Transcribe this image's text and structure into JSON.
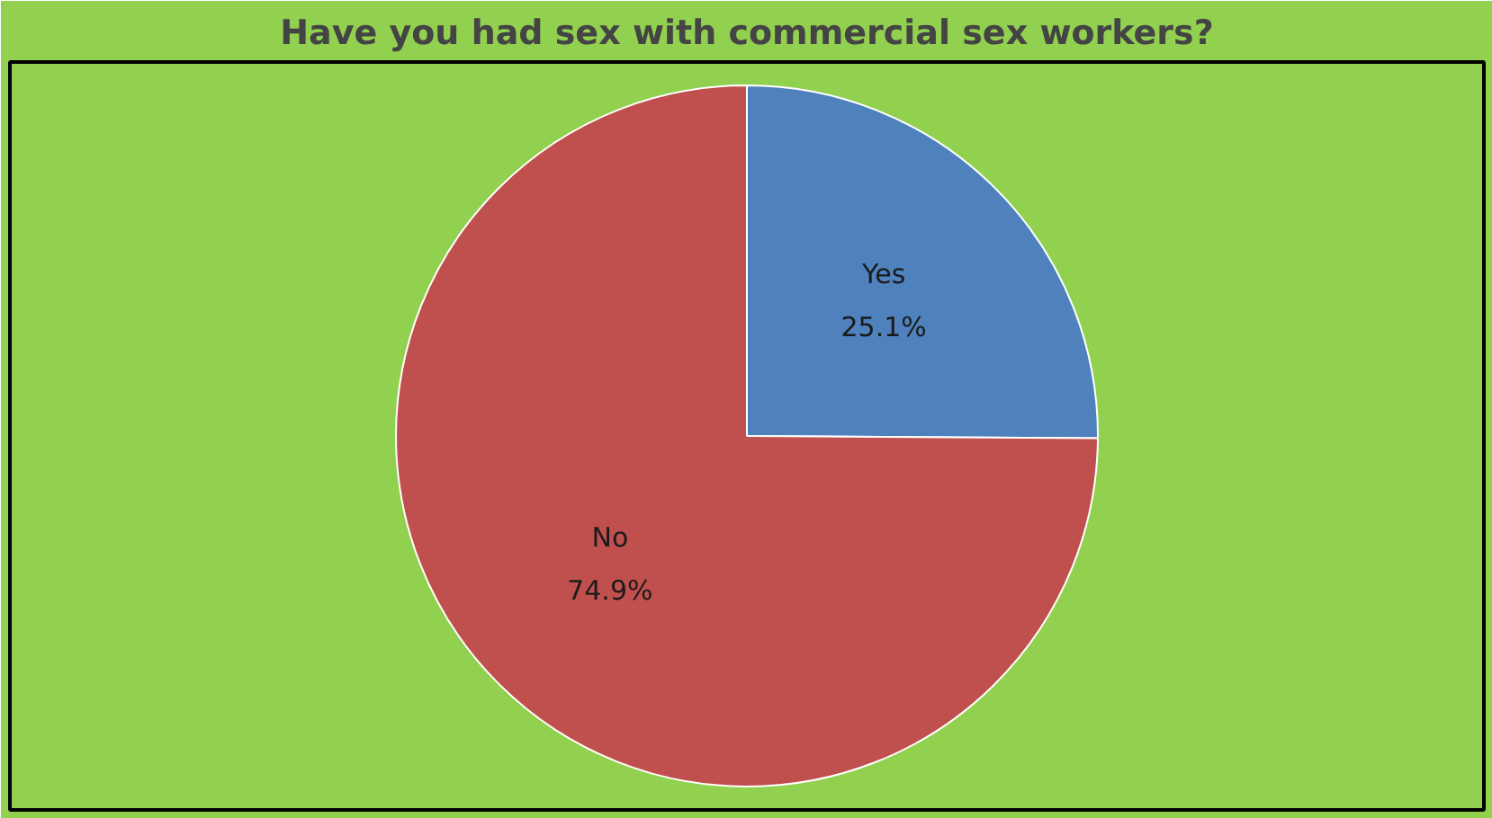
{
  "chart_data": {
    "type": "pie",
    "title": "Have you had sex with commercial sex workers?",
    "categories": [
      "Yes",
      "No"
    ],
    "values": [
      25.1,
      74.9
    ],
    "colors": [
      "#4f81bd",
      "#c0504d"
    ],
    "value_labels": [
      "25.1%",
      "74.9%"
    ]
  }
}
